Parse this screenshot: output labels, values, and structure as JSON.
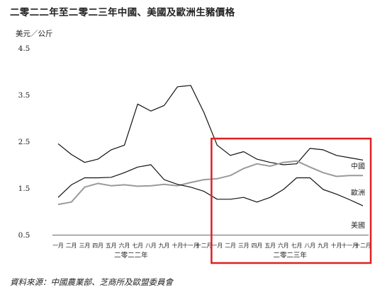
{
  "title": "二零二二年至二零二三年中國、美國及歐洲生豬價格",
  "source": "資料來源：中國農業部、芝商所及歐盟委員會",
  "chart_data": {
    "type": "line",
    "ylabel": "美元／公斤",
    "ylim": [
      0.5,
      4.5
    ],
    "yticks": [
      "4.5",
      "3.5",
      "2.5",
      "1.5",
      "0.5"
    ],
    "xlabel": "",
    "categories": [
      "一月",
      "二月",
      "三月",
      "四月",
      "五月",
      "六月",
      "七月",
      "八月",
      "九月",
      "十月",
      "十一月",
      "十二月",
      "一月",
      "二月",
      "三月",
      "四月",
      "五月",
      "六月",
      "七月",
      "八月",
      "九月",
      "十月",
      "十一月",
      "十二月"
    ],
    "year_groups": [
      "二零二二年",
      "二零二三年"
    ],
    "legend": "right",
    "grid": false,
    "series": [
      {
        "name": "中國",
        "color": "#111111",
        "values": [
          2.45,
          2.22,
          2.05,
          2.12,
          2.32,
          2.42,
          3.3,
          3.15,
          3.27,
          3.67,
          3.7,
          3.12,
          2.42,
          2.2,
          2.28,
          2.12,
          2.05,
          2.0,
          2.02,
          2.35,
          2.32,
          2.2,
          2.15,
          2.1
        ]
      },
      {
        "name": "歐洲",
        "color": "#9a9a9a",
        "values": [
          1.15,
          1.2,
          1.52,
          1.6,
          1.55,
          1.57,
          1.54,
          1.55,
          1.58,
          1.55,
          1.62,
          1.68,
          1.7,
          1.77,
          1.92,
          2.02,
          1.97,
          2.05,
          2.08,
          1.95,
          1.83,
          1.75,
          1.77,
          1.77
        ]
      },
      {
        "name": "美國",
        "color": "#111111",
        "values": [
          1.3,
          1.57,
          1.72,
          1.72,
          1.73,
          1.83,
          1.95,
          2.0,
          1.68,
          1.58,
          1.52,
          1.43,
          1.26,
          1.26,
          1.3,
          1.2,
          1.3,
          1.47,
          1.72,
          1.72,
          1.47,
          1.37,
          1.25,
          1.12
        ]
      }
    ],
    "highlight": {
      "from_index": 12,
      "to_index": 23,
      "color": "#e02020"
    }
  }
}
